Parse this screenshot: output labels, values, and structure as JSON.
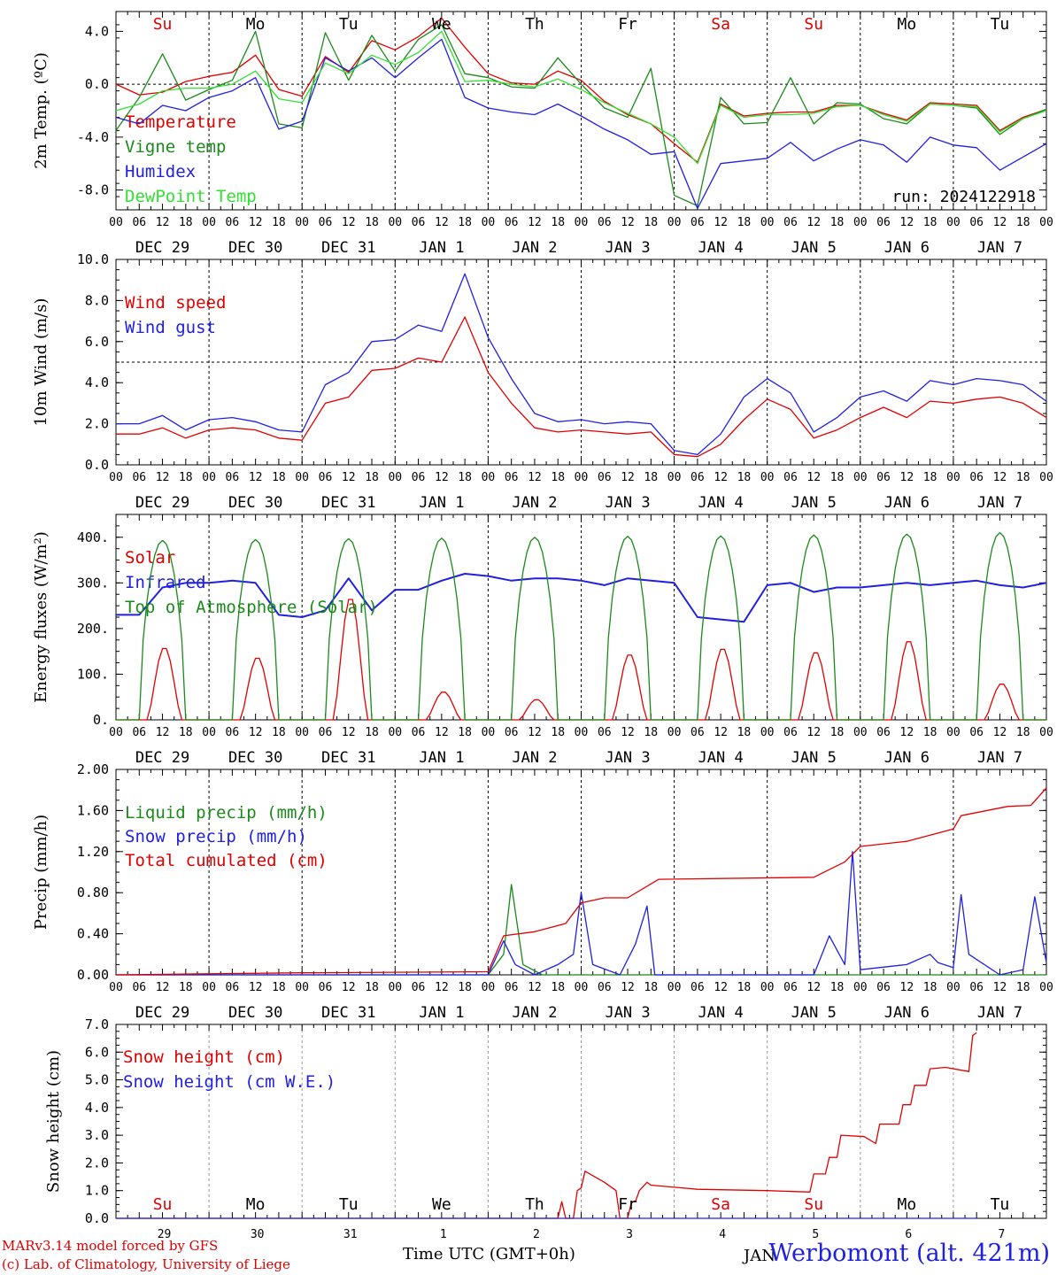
{
  "axis_hours": [
    "00",
    "06",
    "12",
    "18"
  ],
  "date_labels": [
    "DEC 29",
    "DEC 30",
    "DEC 31",
    "JAN  1",
    "JAN  2",
    "JAN  3",
    "JAN  4",
    "JAN  5",
    "JAN  6",
    "JAN  7"
  ],
  "weekdays": [
    "Su",
    "Mo",
    "Tu",
    "We",
    "Th",
    "Fr",
    "Sa",
    "Su",
    "Mo",
    "Tu"
  ],
  "weekday_colors": [
    "#e00000",
    "#000000",
    "#000000",
    "#000000",
    "#000000",
    "#000000",
    "#e00000",
    "#e00000",
    "#000000",
    "#000000"
  ],
  "day_numbers": [
    "29",
    "30",
    "31",
    "1",
    "2",
    "3",
    "4",
    "5",
    "6",
    "7"
  ],
  "footer": {
    "credit_line1": "MARv3.14 model forced by GFS",
    "credit_line2": "(c) Lab. of Climatology, University of Liege",
    "time_label": "Time UTC (GMT+0h)",
    "station": "Werbomont (alt. 421m)",
    "overlap_text": "JAN"
  },
  "chart_data": [
    {
      "type": "line",
      "ylabel": "2m Temp. (ºC)",
      "ylim": [
        -9.5,
        5.5
      ],
      "yticks": [
        4,
        0,
        -4,
        -8
      ],
      "ytick_labels": [
        "4.0",
        "0.0",
        "-4.0",
        "-8.0"
      ],
      "hline": 0,
      "annotation": "run: 2024122918",
      "x_hours_from_dec29_00": [
        0,
        6,
        12,
        18,
        24,
        30,
        36,
        42,
        48,
        54,
        60,
        66,
        72,
        78,
        84,
        90,
        96,
        102,
        108,
        114,
        120,
        126,
        132,
        138,
        144,
        150,
        156,
        162,
        168,
        174,
        180,
        186,
        192,
        198,
        204,
        210,
        216,
        222,
        228,
        234,
        240
      ],
      "series": [
        {
          "name": "Temperature",
          "color": "#e00000",
          "values": [
            0.0,
            -0.8,
            -0.6,
            0.2,
            0.6,
            0.9,
            2.2,
            -0.4,
            -0.9,
            2.1,
            0.9,
            3.3,
            2.6,
            3.6,
            5.0,
            2.8,
            0.8,
            0.1,
            0.0,
            1.0,
            0.3,
            -1.3,
            -2.3,
            -3.0,
            -4.5,
            -5.9,
            -1.5,
            -2.4,
            -2.2,
            -2.1,
            -2.1,
            -1.6,
            -1.6,
            -2.2,
            -2.7,
            -1.4,
            -1.5,
            -1.6,
            -3.5,
            -2.5,
            -1.9
          ]
        },
        {
          "name": "Vigne temp",
          "color": "#1a8a1a",
          "values": [
            -3.5,
            -1.0,
            2.3,
            -1.2,
            -0.4,
            0.3,
            4.0,
            -3.0,
            -3.3,
            3.9,
            0.3,
            3.7,
            1.0,
            3.4,
            4.5,
            0.8,
            0.5,
            -0.2,
            -0.3,
            2.0,
            0.0,
            -1.8,
            -2.5,
            1.2,
            -8.4,
            -9.2,
            -1.0,
            -3.0,
            -2.9,
            0.5,
            -3.0,
            -1.4,
            -1.5,
            -2.6,
            -3.0,
            -1.5,
            -1.6,
            -1.8,
            -3.8,
            -2.6,
            -1.9
          ]
        },
        {
          "name": "Humidex",
          "color": "#2020e0",
          "values": [
            -2.5,
            -3.0,
            -1.6,
            -2.0,
            -1.0,
            -0.5,
            0.5,
            -3.4,
            -2.8,
            2.0,
            1.0,
            2.0,
            0.5,
            2.0,
            3.4,
            -1.0,
            -1.8,
            -2.1,
            -2.3,
            -1.5,
            -2.4,
            -3.4,
            -4.2,
            -5.3,
            -5.1,
            -9.4,
            -6.0,
            -5.8,
            -5.6,
            -4.4,
            -5.8,
            -4.9,
            -4.2,
            -4.6,
            -5.9,
            -4.0,
            -4.6,
            -4.8,
            -6.5,
            -5.5,
            -4.5
          ]
        },
        {
          "name": "DewPoint Temp",
          "color": "#33e033",
          "values": [
            -2.0,
            -1.5,
            -0.5,
            -0.3,
            -0.3,
            0.0,
            1.0,
            -1.1,
            -1.4,
            1.6,
            0.8,
            2.2,
            1.5,
            2.4,
            4.0,
            0.2,
            0.3,
            0.0,
            -0.2,
            0.4,
            -0.4,
            -1.4,
            -2.2,
            -3.0,
            -4.0,
            -6.0,
            -1.6,
            -2.5,
            -2.3,
            -2.3,
            -2.2,
            -1.7,
            -1.6,
            -2.3,
            -2.8,
            -1.5,
            -1.6,
            -1.7,
            -3.6,
            -2.6,
            -2.0
          ]
        }
      ]
    },
    {
      "type": "line",
      "ylabel": "10m Wind (m/s)",
      "ylim": [
        0,
        10
      ],
      "yticks": [
        10,
        8,
        6,
        4,
        2,
        0
      ],
      "ytick_labels": [
        "10.0",
        "8.0",
        "6.0",
        "4.0",
        "2.0",
        "0.0"
      ],
      "hline": 5,
      "x_hours_from_dec29_00": [
        0,
        6,
        12,
        18,
        24,
        30,
        36,
        42,
        48,
        54,
        60,
        66,
        72,
        78,
        84,
        90,
        96,
        102,
        108,
        114,
        120,
        126,
        132,
        138,
        144,
        150,
        156,
        162,
        168,
        174,
        180,
        186,
        192,
        198,
        204,
        210,
        216,
        222,
        228,
        234,
        240
      ],
      "series": [
        {
          "name": "Wind speed",
          "color": "#e00000",
          "values": [
            1.5,
            1.5,
            1.8,
            1.3,
            1.7,
            1.8,
            1.7,
            1.3,
            1.2,
            3.0,
            3.3,
            4.6,
            4.7,
            5.2,
            5.0,
            7.2,
            4.5,
            3.0,
            1.8,
            1.6,
            1.7,
            1.6,
            1.5,
            1.6,
            0.5,
            0.4,
            1.0,
            2.2,
            3.2,
            2.7,
            1.3,
            1.7,
            2.3,
            2.8,
            2.3,
            3.1,
            3.0,
            3.2,
            3.3,
            3.0,
            2.3
          ]
        },
        {
          "name": "Wind gust",
          "color": "#2020e0",
          "values": [
            2.0,
            2.0,
            2.4,
            1.7,
            2.2,
            2.3,
            2.1,
            1.7,
            1.6,
            3.9,
            4.5,
            6.0,
            6.1,
            6.8,
            6.5,
            9.3,
            6.2,
            4.2,
            2.5,
            2.1,
            2.2,
            2.0,
            2.1,
            2.0,
            0.7,
            0.5,
            1.5,
            3.3,
            4.2,
            3.5,
            1.6,
            2.3,
            3.3,
            3.6,
            3.1,
            4.1,
            3.9,
            4.2,
            4.1,
            3.9,
            3.1
          ]
        }
      ]
    },
    {
      "type": "line",
      "ylabel": "Energy fluxes (W/m²)",
      "ylim": [
        0,
        450
      ],
      "yticks": [
        400,
        300,
        200,
        100,
        0
      ],
      "ytick_labels": [
        "400.",
        "300.",
        "200.",
        "100.",
        "0."
      ],
      "series": [
        {
          "name": "Solar",
          "color": "#e00000",
          "daily_peaks": [
            160,
            138,
            270,
            62,
            45,
            145,
            158,
            150,
            175,
            80
          ]
        },
        {
          "name": "Infrared",
          "color": "#2020e0",
          "values": [
            230,
            230,
            290,
            300,
            300,
            305,
            300,
            230,
            225,
            240,
            310,
            240,
            285,
            285,
            305,
            320,
            315,
            305,
            310,
            310,
            305,
            295,
            310,
            305,
            300,
            225,
            220,
            215,
            295,
            300,
            280,
            290,
            290,
            295,
            300,
            295,
            300,
            305,
            295,
            290,
            300
          ]
        },
        {
          "name": "Top of Atmosphere (Solar)",
          "color": "#1a8a1a",
          "daily_peaks": [
            393,
            395,
            397,
            398,
            400,
            402,
            403,
            405,
            407,
            410
          ]
        }
      ]
    },
    {
      "type": "line",
      "ylabel": "Precip (mm/h)",
      "ylim": [
        0,
        2.0
      ],
      "yticks": [
        2.0,
        1.6,
        1.2,
        0.8,
        0.4,
        0.0
      ],
      "ytick_labels": [
        "2.00",
        "1.60",
        "1.20",
        "0.80",
        "0.40",
        "0.00"
      ],
      "series": [
        {
          "name": "Liquid precip (mm/h)",
          "color": "#1a8a1a",
          "points": [
            [
              0,
              0
            ],
            [
              96,
              0
            ],
            [
              100,
              0.2
            ],
            [
              102,
              0.88
            ],
            [
              105,
              0.1
            ],
            [
              110,
              0
            ],
            [
              240,
              0
            ]
          ]
        },
        {
          "name": "Snow precip (mm/h)",
          "color": "#2020e0",
          "points": [
            [
              0,
              0
            ],
            [
              96,
              0
            ],
            [
              100,
              0.33
            ],
            [
              103,
              0.1
            ],
            [
              108,
              0
            ],
            [
              114,
              0.1
            ],
            [
              118,
              0.2
            ],
            [
              120,
              0.8
            ],
            [
              123,
              0.1
            ],
            [
              130,
              0
            ],
            [
              134,
              0.3
            ],
            [
              137,
              0.67
            ],
            [
              139,
              0
            ],
            [
              180,
              0
            ],
            [
              184,
              0.38
            ],
            [
              188,
              0.1
            ],
            [
              190,
              1.2
            ],
            [
              192,
              0.05
            ],
            [
              204,
              0.1
            ],
            [
              210,
              0.2
            ],
            [
              212,
              0.12
            ],
            [
              216,
              0.07
            ],
            [
              218,
              0.78
            ],
            [
              220,
              0.2
            ],
            [
              228,
              0
            ],
            [
              234,
              0.05
            ],
            [
              237,
              0.76
            ],
            [
              240,
              0.12
            ]
          ]
        },
        {
          "name": "Total cumulated (cm)",
          "color": "#e00000",
          "points": [
            [
              0,
              0
            ],
            [
              24,
              0.01
            ],
            [
              48,
              0.02
            ],
            [
              96,
              0.03
            ],
            [
              100,
              0.38
            ],
            [
              108,
              0.42
            ],
            [
              116,
              0.5
            ],
            [
              120,
              0.7
            ],
            [
              126,
              0.75
            ],
            [
              132,
              0.75
            ],
            [
              140,
              0.93
            ],
            [
              180,
              0.95
            ],
            [
              188,
              1.1
            ],
            [
              192,
              1.25
            ],
            [
              204,
              1.3
            ],
            [
              216,
              1.42
            ],
            [
              218,
              1.55
            ],
            [
              230,
              1.64
            ],
            [
              236,
              1.65
            ],
            [
              240,
              1.82
            ]
          ]
        }
      ]
    },
    {
      "type": "line",
      "ylabel": "Snow height (cm)",
      "ylim": [
        0,
        7.0
      ],
      "yticks": [
        7.0,
        6.0,
        5.0,
        4.0,
        3.0,
        2.0,
        1.0,
        0.0
      ],
      "ytick_labels": [
        "7.0",
        "6.0",
        "5.0",
        "4.0",
        "3.0",
        "2.0",
        "1.0",
        "0.0"
      ],
      "series": [
        {
          "name": "Snow height (cm)",
          "color": "#e00000",
          "points": [
            [
              0,
              0
            ],
            [
              114,
              0
            ],
            [
              115,
              0.6
            ],
            [
              116,
              0
            ],
            [
              118,
              0
            ],
            [
              119,
              1.0
            ],
            [
              120,
              1.1
            ],
            [
              121,
              1.7
            ],
            [
              126,
              1.3
            ],
            [
              129,
              1.0
            ],
            [
              130,
              0
            ],
            [
              132,
              0
            ],
            [
              133,
              0.6
            ],
            [
              134,
              0.6
            ],
            [
              135,
              1.0
            ],
            [
              137,
              1.3
            ],
            [
              138,
              1.2
            ],
            [
              150,
              1.05
            ],
            [
              168,
              1.0
            ],
            [
              179,
              0.95
            ],
            [
              180,
              1.6
            ],
            [
              183,
              1.6
            ],
            [
              184,
              2.2
            ],
            [
              186,
              2.2
            ],
            [
              187,
              3.0
            ],
            [
              193,
              2.95
            ],
            [
              196,
              2.7
            ],
            [
              197,
              3.4
            ],
            [
              202,
              3.4
            ],
            [
              203,
              4.1
            ],
            [
              205,
              4.1
            ],
            [
              206,
              4.8
            ],
            [
              209,
              4.8
            ],
            [
              210,
              5.4
            ],
            [
              214,
              5.45
            ],
            [
              220,
              5.3
            ],
            [
              221,
              6.6
            ],
            [
              222,
              6.7
            ]
          ]
        },
        {
          "name": "Snow height (cm W.E.)",
          "color": "#2020e0",
          "points": [
            [
              0,
              0
            ],
            [
              222,
              0
            ]
          ]
        }
      ]
    }
  ]
}
